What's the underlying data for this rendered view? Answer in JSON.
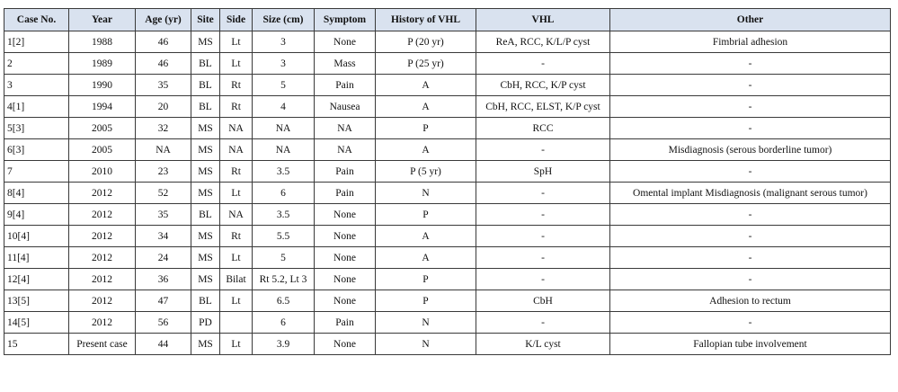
{
  "table": {
    "headers": [
      "Case No.",
      "Year",
      "Age (yr)",
      "Site",
      "Side",
      "Size (cm)",
      "Symptom",
      "History of VHL",
      "VHL",
      "Other"
    ],
    "rows": [
      [
        "1[2]",
        "1988",
        "46",
        "MS",
        "Lt",
        "3",
        "None",
        "P (20 yr)",
        "ReA, RCC, K/L/P cyst",
        "Fimbrial adhesion"
      ],
      [
        "2",
        "1989",
        "46",
        "BL",
        "Lt",
        "3",
        "Mass",
        "P (25 yr)",
        "-",
        "-"
      ],
      [
        "3",
        "1990",
        "35",
        "BL",
        "Rt",
        "5",
        "Pain",
        "A",
        "CbH, RCC, K/P cyst",
        "-"
      ],
      [
        "4[1]",
        "1994",
        "20",
        "BL",
        "Rt",
        "4",
        "Nausea",
        "A",
        "CbH, RCC, ELST, K/P cyst",
        "-"
      ],
      [
        "5[3]",
        "2005",
        "32",
        "MS",
        "NA",
        "NA",
        "NA",
        "P",
        "RCC",
        "-"
      ],
      [
        "6[3]",
        "2005",
        "NA",
        "MS",
        "NA",
        "NA",
        "NA",
        "A",
        "-",
        "Misdiagnosis (serous borderline tumor)"
      ],
      [
        "7",
        "2010",
        "23",
        "MS",
        "Rt",
        "3.5",
        "Pain",
        "P (5 yr)",
        "SpH",
        "-"
      ],
      [
        "8[4]",
        "2012",
        "52",
        "MS",
        "Lt",
        "6",
        "Pain",
        "N",
        "-",
        "Omental implant Misdiagnosis (malignant serous tumor)"
      ],
      [
        "9[4]",
        "2012",
        "35",
        "BL",
        "NA",
        "3.5",
        "None",
        "P",
        "-",
        "-"
      ],
      [
        "10[4]",
        "2012",
        "34",
        "MS",
        "Rt",
        "5.5",
        "None",
        "A",
        "-",
        "-"
      ],
      [
        "11[4]",
        "2012",
        "24",
        "MS",
        "Lt",
        "5",
        "None",
        "A",
        "-",
        "-"
      ],
      [
        "12[4]",
        "2012",
        "36",
        "MS",
        "Bilat",
        "Rt 5.2, Lt 3",
        "None",
        "P",
        "-",
        "-"
      ],
      [
        "13[5]",
        "2012",
        "47",
        "BL",
        "Lt",
        "6.5",
        "None",
        "P",
        "CbH",
        "Adhesion to rectum"
      ],
      [
        "14[5]",
        "2012",
        "56",
        "PD",
        "",
        "6",
        "Pain",
        "N",
        "-",
        "-"
      ],
      [
        "15",
        "Present case",
        "44",
        "MS",
        "Lt",
        "3.9",
        "None",
        "N",
        "K/L cyst",
        "Fallopian tube involvement"
      ]
    ]
  }
}
